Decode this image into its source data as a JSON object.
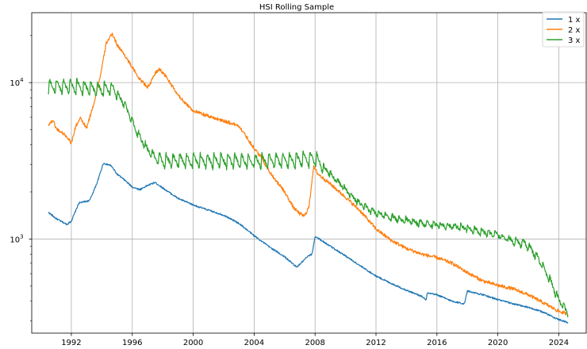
{
  "chart_data": {
    "type": "line",
    "title": "HSI Rolling Sample",
    "xlabel": "",
    "ylabel": "",
    "yscale": "log",
    "xlim": [
      1989.4,
      2025.8
    ],
    "ylim": [
      250,
      28000
    ],
    "grid": true,
    "legend_position": "top-right",
    "x_ticks": [
      1992,
      1996,
      2000,
      2004,
      2008,
      2012,
      2016,
      2020,
      2024
    ],
    "x_tick_labels": [
      "1992",
      "1996",
      "2000",
      "2004",
      "2008",
      "2012",
      "2016",
      "2020",
      "2024"
    ],
    "y_ticks": [
      {
        "value": 1000,
        "base": "10",
        "exp": "3"
      },
      {
        "value": 10000,
        "base": "10",
        "exp": "4"
      }
    ],
    "series": [
      {
        "name": "1 x",
        "color": "#1f77b4",
        "noise": 0.012,
        "osc_amp": 0,
        "points": [
          [
            1990.5,
            1480
          ],
          [
            1991.0,
            1350
          ],
          [
            1991.7,
            1240
          ],
          [
            1992.0,
            1300
          ],
          [
            1992.5,
            1700
          ],
          [
            1993.2,
            1760
          ],
          [
            1993.7,
            2300
          ],
          [
            1994.1,
            3050
          ],
          [
            1994.6,
            2950
          ],
          [
            1995.0,
            2600
          ],
          [
            1995.5,
            2380
          ],
          [
            1996.0,
            2150
          ],
          [
            1996.5,
            2070
          ],
          [
            1997.0,
            2200
          ],
          [
            1997.5,
            2300
          ],
          [
            1998.0,
            2120
          ],
          [
            1999.0,
            1820
          ],
          [
            2000.0,
            1650
          ],
          [
            2001.0,
            1530
          ],
          [
            2002.0,
            1420
          ],
          [
            2003.0,
            1260
          ],
          [
            2004.0,
            1050
          ],
          [
            2005.0,
            890
          ],
          [
            2006.0,
            770
          ],
          [
            2006.8,
            660
          ],
          [
            2007.2,
            720
          ],
          [
            2007.5,
            770
          ],
          [
            2007.8,
            800
          ],
          [
            2008.0,
            1040
          ],
          [
            2009.0,
            900
          ],
          [
            2010.0,
            780
          ],
          [
            2011.0,
            670
          ],
          [
            2012.0,
            580
          ],
          [
            2013.0,
            520
          ],
          [
            2014.0,
            470
          ],
          [
            2015.0,
            430
          ],
          [
            2015.3,
            405
          ],
          [
            2015.35,
            450
          ],
          [
            2016.0,
            440
          ],
          [
            2017.0,
            400
          ],
          [
            2017.8,
            385
          ],
          [
            2018.0,
            465
          ],
          [
            2019.0,
            440
          ],
          [
            2020.0,
            410
          ],
          [
            2021.0,
            385
          ],
          [
            2022.0,
            365
          ],
          [
            2023.0,
            340
          ],
          [
            2024.0,
            305
          ],
          [
            2024.6,
            292
          ]
        ]
      },
      {
        "name": "2 x",
        "color": "#ff7f0e",
        "noise": 0.025,
        "osc_amp": 0,
        "points": [
          [
            1990.5,
            5400
          ],
          [
            1990.8,
            5750
          ],
          [
            1991.0,
            5100
          ],
          [
            1991.5,
            4700
          ],
          [
            1991.8,
            4400
          ],
          [
            1992.0,
            4100
          ],
          [
            1992.3,
            5300
          ],
          [
            1992.6,
            5900
          ],
          [
            1993.0,
            5100
          ],
          [
            1993.5,
            7500
          ],
          [
            1993.9,
            11000
          ],
          [
            1994.3,
            18000
          ],
          [
            1994.7,
            20500
          ],
          [
            1995.0,
            17500
          ],
          [
            1995.5,
            15000
          ],
          [
            1996.0,
            12500
          ],
          [
            1996.5,
            10500
          ],
          [
            1997.0,
            9400
          ],
          [
            1997.2,
            9900
          ],
          [
            1997.5,
            11500
          ],
          [
            1997.8,
            12200
          ],
          [
            1998.2,
            11000
          ],
          [
            1999.0,
            8300
          ],
          [
            2000.0,
            6600
          ],
          [
            2001.0,
            6100
          ],
          [
            2002.0,
            5700
          ],
          [
            2003.0,
            5300
          ],
          [
            2003.5,
            4500
          ],
          [
            2004.0,
            3800
          ],
          [
            2004.5,
            3300
          ],
          [
            2005.0,
            2700
          ],
          [
            2006.0,
            2000
          ],
          [
            2006.6,
            1580
          ],
          [
            2007.0,
            1450
          ],
          [
            2007.3,
            1400
          ],
          [
            2007.6,
            1600
          ],
          [
            2007.9,
            2900
          ],
          [
            2008.2,
            2600
          ],
          [
            2009.0,
            2250
          ],
          [
            2010.0,
            1850
          ],
          [
            2011.0,
            1500
          ],
          [
            2012.0,
            1160
          ],
          [
            2013.0,
            980
          ],
          [
            2014.0,
            870
          ],
          [
            2015.0,
            800
          ],
          [
            2016.0,
            760
          ],
          [
            2017.0,
            700
          ],
          [
            2018.0,
            610
          ],
          [
            2019.0,
            540
          ],
          [
            2020.0,
            505
          ],
          [
            2021.0,
            480
          ],
          [
            2022.0,
            440
          ],
          [
            2023.0,
            390
          ],
          [
            2024.0,
            345
          ],
          [
            2024.6,
            330
          ]
        ]
      },
      {
        "name": "3 x",
        "color": "#2ca02c",
        "noise": 0.03,
        "osc_amp": 0.1,
        "osc_period": 0.45,
        "points": [
          [
            1990.5,
            9200
          ],
          [
            1991.0,
            9300
          ],
          [
            1992.0,
            9300
          ],
          [
            1993.0,
            9100
          ],
          [
            1994.0,
            8900
          ],
          [
            1994.8,
            9000
          ],
          [
            1995.5,
            7200
          ],
          [
            1996.0,
            5600
          ],
          [
            1996.5,
            4400
          ],
          [
            1997.0,
            3700
          ],
          [
            1997.5,
            3300
          ],
          [
            1998.0,
            3100
          ],
          [
            2000.0,
            3100
          ],
          [
            2002.0,
            3100
          ],
          [
            2004.0,
            3100
          ],
          [
            2006.0,
            3100
          ],
          [
            2008.0,
            3200
          ],
          [
            2009.0,
            2600
          ],
          [
            2010.0,
            2050
          ],
          [
            2011.0,
            1650
          ],
          [
            2012.0,
            1450
          ],
          [
            2013.0,
            1360
          ],
          [
            2014.0,
            1300
          ],
          [
            2015.0,
            1250
          ],
          [
            2016.0,
            1220
          ],
          [
            2017.0,
            1200
          ],
          [
            2018.0,
            1160
          ],
          [
            2019.0,
            1100
          ],
          [
            2020.0,
            1050
          ],
          [
            2021.0,
            960
          ],
          [
            2021.8,
            920
          ],
          [
            2022.5,
            780
          ],
          [
            2023.0,
            650
          ],
          [
            2023.5,
            520
          ],
          [
            2024.0,
            400
          ],
          [
            2024.6,
            330
          ]
        ]
      }
    ]
  }
}
